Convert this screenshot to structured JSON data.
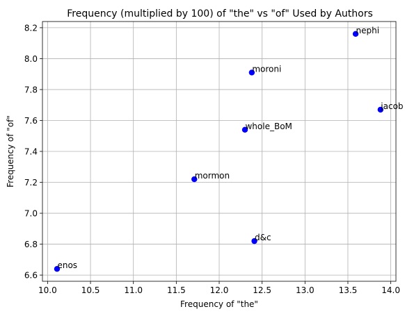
{
  "chart_data": {
    "type": "scatter",
    "title": "Frequency (multiplied by 100) of \"the\" vs \"of\" Used by Authors",
    "xlabel": "Frequency of \"the\"",
    "ylabel": "Frequency of \"of\"",
    "xlim": [
      9.94,
      14.06
    ],
    "ylim": [
      6.56,
      8.24
    ],
    "xticks": [
      10.0,
      10.5,
      11.0,
      11.5,
      12.0,
      12.5,
      13.0,
      13.5,
      14.0
    ],
    "xtick_labels": [
      "10.0",
      "10.5",
      "11.0",
      "11.5",
      "12.0",
      "12.5",
      "13.0",
      "13.5",
      "14.0"
    ],
    "yticks": [
      6.6,
      6.8,
      7.0,
      7.2,
      7.4,
      7.6,
      7.8,
      8.0,
      8.2
    ],
    "ytick_labels": [
      "6.6",
      "6.8",
      "7.0",
      "7.2",
      "7.4",
      "7.6",
      "7.8",
      "8.0",
      "8.2"
    ],
    "grid": true,
    "marker_color": "#0000ff",
    "points": [
      {
        "label": "nephi",
        "x": 13.59,
        "y": 8.16
      },
      {
        "label": "moroni",
        "x": 12.38,
        "y": 7.91
      },
      {
        "label": "jacob",
        "x": 13.88,
        "y": 7.67
      },
      {
        "label": "whole_BoM",
        "x": 12.3,
        "y": 7.54
      },
      {
        "label": "mormon",
        "x": 11.71,
        "y": 7.22
      },
      {
        "label": "d&c",
        "x": 12.41,
        "y": 6.82
      },
      {
        "label": "enos",
        "x": 10.11,
        "y": 6.64
      }
    ]
  }
}
